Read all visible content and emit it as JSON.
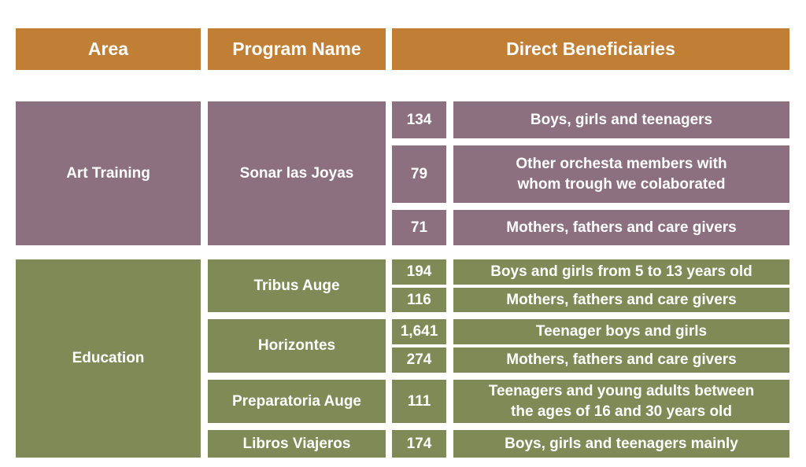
{
  "headers": {
    "area": "Area",
    "program": "Program Name",
    "beneficiaries": "Direct Beneficiaries"
  },
  "colors": {
    "header": "#c17f35",
    "art": "#8d7080",
    "education": "#7f8a56"
  },
  "sections": [
    {
      "area": "Art Training",
      "programs": [
        {
          "name": "Sonar las Joyas",
          "rows": [
            {
              "count": "134",
              "group": "Boys, girls and teenagers"
            },
            {
              "count": "79",
              "group": "Other orchesta members with\nwhom trough we colaborated"
            },
            {
              "count": "71",
              "group": "Mothers, fathers and care givers"
            }
          ]
        }
      ]
    },
    {
      "area": "Education",
      "programs": [
        {
          "name": "Tribus Auge",
          "rows": [
            {
              "count": "194",
              "group": "Boys and girls from 5 to 13 years old"
            },
            {
              "count": "116",
              "group": "Mothers, fathers and care givers"
            }
          ]
        },
        {
          "name": "Horizontes",
          "rows": [
            {
              "count": "1,641",
              "group": "Teenager boys and girls"
            },
            {
              "count": "274",
              "group": "Mothers, fathers and care givers"
            }
          ]
        },
        {
          "name": "Preparatoria Auge",
          "rows": [
            {
              "count": "111",
              "group": "Teenagers and young adults between\nthe ages of 16 and 30 years old"
            }
          ]
        },
        {
          "name": "Libros Viajeros",
          "rows": [
            {
              "count": "174",
              "group": "Boys, girls and teenagers mainly"
            }
          ]
        }
      ]
    }
  ]
}
